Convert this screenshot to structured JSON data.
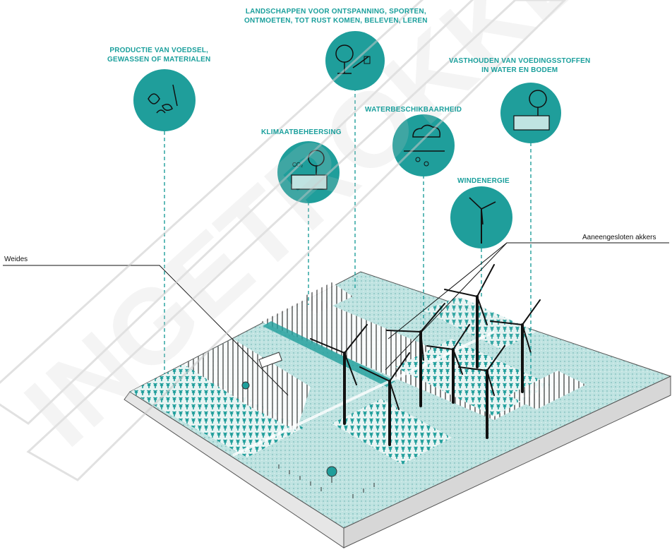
{
  "colors": {
    "teal": "#1f9e9b",
    "teal_light": "#bfe3e1",
    "teal_field": "#a8d8d6",
    "slab_side": "#e6e6e6",
    "watermark": "#d0d0d0",
    "line": "#111111"
  },
  "services": [
    {
      "id": "productie",
      "lines": [
        "PRODUCTIE VAN VOEDSEL,",
        "GEWASSEN OF MATERIALEN"
      ],
      "icon": "food-crops-icon"
    },
    {
      "id": "landschappen",
      "lines": [
        "LANDSCHAPPEN VOOR ONTSPANNING, SPORTEN,",
        "ONTMOETEN, TOT RUST KOMEN, BELEVEN, LEREN"
      ],
      "icon": "recreation-tree-icon"
    },
    {
      "id": "klimaat",
      "lines": [
        "KLIMAATBEHEERSING"
      ],
      "icon": "climate-co2-soil-icon"
    },
    {
      "id": "water",
      "lines": [
        "WATERBESCHIKBAARHEID"
      ],
      "icon": "rain-cloud-icon"
    },
    {
      "id": "voeding",
      "lines": [
        "VASTHOUDEN VAN VOEDINGSSTOFFEN",
        "IN WATER EN BODEM"
      ],
      "icon": "nutrient-soil-tree-icon"
    },
    {
      "id": "wind",
      "lines": [
        "WINDENERGIE"
      ],
      "icon": "wind-turbine-icon"
    }
  ],
  "callouts": {
    "weides": "Weides",
    "akkers": "Aaneengesloten akkers"
  },
  "watermark": "INGETROKKEN"
}
